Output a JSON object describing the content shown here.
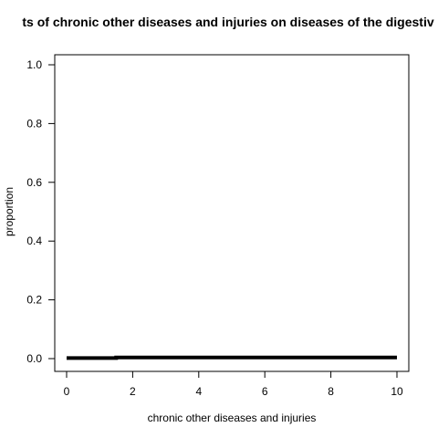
{
  "chart_data": {
    "type": "line",
    "title": "ts of chronic other diseases and injuries on diseases of the digestiv",
    "xlabel": "chronic other diseases and injuries",
    "ylabel": "proportion",
    "xlim": [
      0,
      10
    ],
    "ylim": [
      0,
      1
    ],
    "xticks": [
      "0",
      "2",
      "4",
      "6",
      "8",
      "10"
    ],
    "yticks": [
      "0.0",
      "0.2",
      "0.4",
      "0.6",
      "0.8",
      "1.0"
    ],
    "grid": false,
    "legend": "none",
    "series": [
      {
        "x": [
          0,
          1.5,
          1.5,
          10
        ],
        "y": [
          0.002,
          0.002,
          0.004,
          0.004
        ],
        "color": "#000000"
      }
    ]
  }
}
